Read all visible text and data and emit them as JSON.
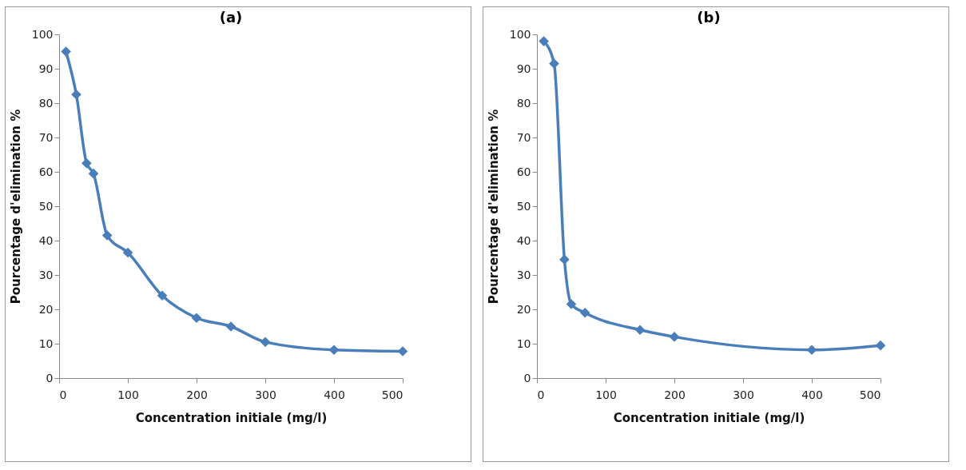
{
  "chart_data": [
    {
      "type": "line",
      "title": "(a)",
      "xlabel": "Concentration initiale (mg/l)",
      "ylabel": "Pourcentage  d'elimination %",
      "x": [
        10,
        25,
        40,
        50,
        70,
        100,
        150,
        200,
        250,
        300,
        400,
        500
      ],
      "series": [
        {
          "color": "#4a7ebb",
          "values": [
            95,
            82.5,
            62.5,
            59.5,
            41.5,
            36.5,
            24,
            17.5,
            15,
            10.5,
            8.2,
            7.8
          ]
        }
      ],
      "xlim": [
        0,
        500
      ],
      "xticks": [
        0,
        100,
        200,
        300,
        400,
        500
      ],
      "ylim": [
        0,
        100
      ],
      "yticks": [
        0,
        10,
        20,
        30,
        40,
        50,
        60,
        70,
        80,
        90,
        100
      ],
      "grid": false,
      "marker": "diamond",
      "line_style": "solid"
    },
    {
      "type": "line",
      "title": "(b)",
      "xlabel": "Concentration initiale (mg/l)",
      "ylabel": "Pourcentage d'elimination %",
      "x": [
        10,
        25,
        40,
        50,
        70,
        150,
        200,
        400,
        500
      ],
      "series": [
        {
          "color": "#4a7ebb",
          "values": [
            98,
            91.5,
            34.5,
            21.5,
            19,
            14,
            12,
            8.2,
            9.5
          ]
        }
      ],
      "xlim": [
        0,
        500
      ],
      "xticks": [
        0,
        100,
        200,
        300,
        400,
        500
      ],
      "ylim": [
        0,
        100
      ],
      "yticks": [
        0,
        10,
        20,
        30,
        40,
        50,
        60,
        70,
        80,
        90,
        100
      ],
      "grid": false,
      "marker": "diamond",
      "line_style": "solid"
    }
  ]
}
